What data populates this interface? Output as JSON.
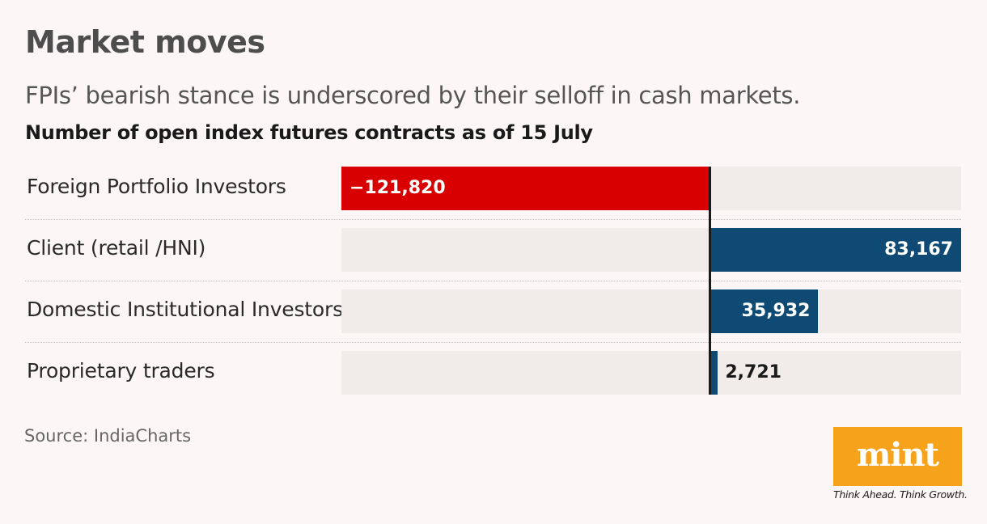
{
  "header": {
    "title": "Market moves",
    "subtitle": "FPIs’ bearish stance is underscored by their selloff in cash markets.",
    "chart_title": "Number of open index futures contracts as of 15 July"
  },
  "source": "Source: IndiaCharts",
  "brand": {
    "logo_text": "mint",
    "tagline": "Think Ahead. Think Growth.",
    "logo_color": "#f7a21b"
  },
  "colors": {
    "negative": "#d80000",
    "positive": "#0e4a74",
    "track": "#f1ebea",
    "background": "#fcf7f6"
  },
  "chart_data": {
    "type": "bar",
    "orientation": "horizontal",
    "title": "Number of open index futures contracts as of 15 July",
    "categories": [
      "Foreign Portfolio Investors",
      "Client (retail /HNI)",
      "Domestic Institutional Investors",
      "Proprietary traders"
    ],
    "values": [
      -121820,
      83167,
      35932,
      2721
    ],
    "value_labels": [
      "−121,820",
      "83,167",
      "35,932",
      "2,721"
    ],
    "xlim": [
      -121820,
      83167
    ],
    "xlabel": "",
    "ylabel": "",
    "grid": false
  }
}
